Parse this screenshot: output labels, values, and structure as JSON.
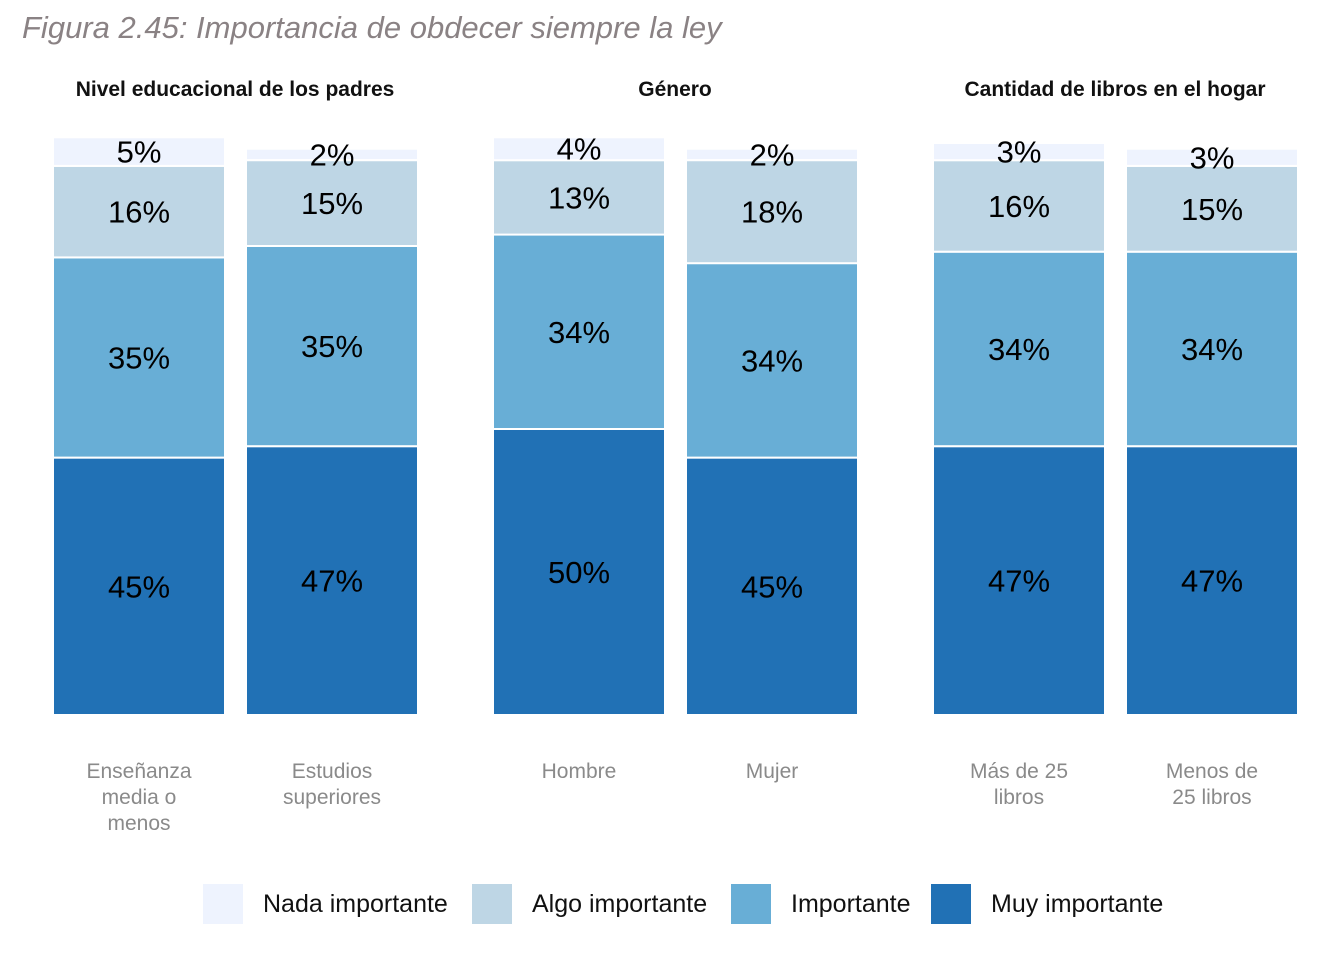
{
  "figure_title": "Figura 2.45: Importancia de obdecer siempre la ley",
  "colors": {
    "nada": "#eef3fe",
    "algo": "#bed6e5",
    "importante": "#68aed6",
    "muy": "#2171b5"
  },
  "legend": [
    {
      "key": "nada",
      "label": "Nada importante"
    },
    {
      "key": "algo",
      "label": "Algo importante"
    },
    {
      "key": "importante",
      "label": "Importante"
    },
    {
      "key": "muy",
      "label": "Muy importante"
    }
  ],
  "chart_data": {
    "type": "bar",
    "stacked": true,
    "percent_labels": true,
    "series_order_bottom_to_top": [
      "Muy importante",
      "Importante",
      "Algo importante",
      "Nada importante"
    ],
    "panels": [
      {
        "title": "Nivel educacional de los padres",
        "bars": [
          {
            "category": "Enseñanza media o menos",
            "category_lines": [
              "Enseñanza",
              "media o",
              "menos"
            ],
            "values": {
              "Muy importante": 45,
              "Importante": 35,
              "Algo importante": 16,
              "Nada importante": 5
            },
            "labels": {
              "Muy importante": "45%",
              "Importante": "35%",
              "Algo importante": "16%",
              "Nada importante": "5%"
            }
          },
          {
            "category": "Estudios superiores",
            "category_lines": [
              "Estudios",
              "superiores"
            ],
            "values": {
              "Muy importante": 47,
              "Importante": 35,
              "Algo importante": 15,
              "Nada importante": 2
            },
            "labels": {
              "Muy importante": "47%",
              "Importante": "35%",
              "Algo importante": "15%",
              "Nada importante": "2%"
            }
          }
        ]
      },
      {
        "title": "Género",
        "bars": [
          {
            "category": "Hombre",
            "category_lines": [
              "Hombre"
            ],
            "values": {
              "Muy importante": 50,
              "Importante": 34,
              "Algo importante": 13,
              "Nada importante": 4
            },
            "labels": {
              "Muy importante": "50%",
              "Importante": "34%",
              "Algo importante": "13%",
              "Nada importante": "4%"
            }
          },
          {
            "category": "Mujer",
            "category_lines": [
              "Mujer"
            ],
            "values": {
              "Muy importante": 45,
              "Importante": 34,
              "Algo importante": 18,
              "Nada importante": 2
            },
            "labels": {
              "Muy importante": "45%",
              "Importante": "34%",
              "Algo importante": "18%",
              "Nada importante": "2%"
            }
          }
        ]
      },
      {
        "title": "Cantidad de libros en el hogar",
        "bars": [
          {
            "category": "Más de 25 libros",
            "category_lines": [
              "Más de 25",
              "libros"
            ],
            "values": {
              "Muy importante": 47,
              "Importante": 34,
              "Algo importante": 16,
              "Nada importante": 3
            },
            "labels": {
              "Muy importante": "47%",
              "Importante": "34%",
              "Algo importante": "16%",
              "Nada importante": "3%"
            }
          },
          {
            "category": "Menos de 25 libros",
            "category_lines": [
              "Menos de",
              "25 libros"
            ],
            "values": {
              "Muy importante": 47,
              "Importante": 34,
              "Algo importante": 15,
              "Nada importante": 3
            },
            "labels": {
              "Muy importante": "47%",
              "Importante": "34%",
              "Algo importante": "15%",
              "Nada importante": "3%"
            }
          }
        ]
      }
    ]
  }
}
